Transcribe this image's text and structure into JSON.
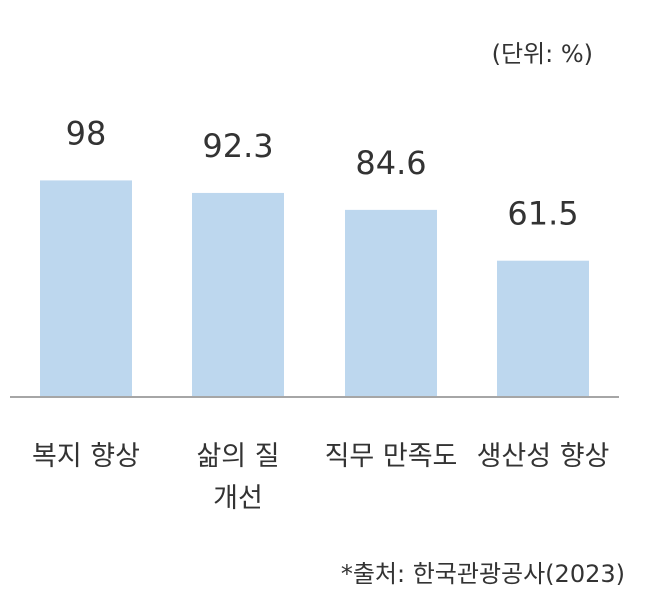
{
  "unit_label": "(단위: %)",
  "source_note": "*출처: 한국관광공사(2023)",
  "chart_data": {
    "type": "bar",
    "categories": [
      "복지 향상",
      "삶의 질 개선",
      "직무 만족도",
      "생산성 향상"
    ],
    "category_lines": [
      [
        "복지 향상"
      ],
      [
        "삶의 질",
        "개선"
      ],
      [
        "직무 만족도"
      ],
      [
        "생산성 향상"
      ]
    ],
    "values": [
      98,
      92.3,
      84.6,
      61.5
    ],
    "data_labels": [
      "98",
      "92.3",
      "84.6",
      "61.5"
    ],
    "ylim": [
      0,
      100
    ],
    "grid": false,
    "bar_color": "#BDD7EE",
    "axis_color": "#A6A6A6"
  }
}
